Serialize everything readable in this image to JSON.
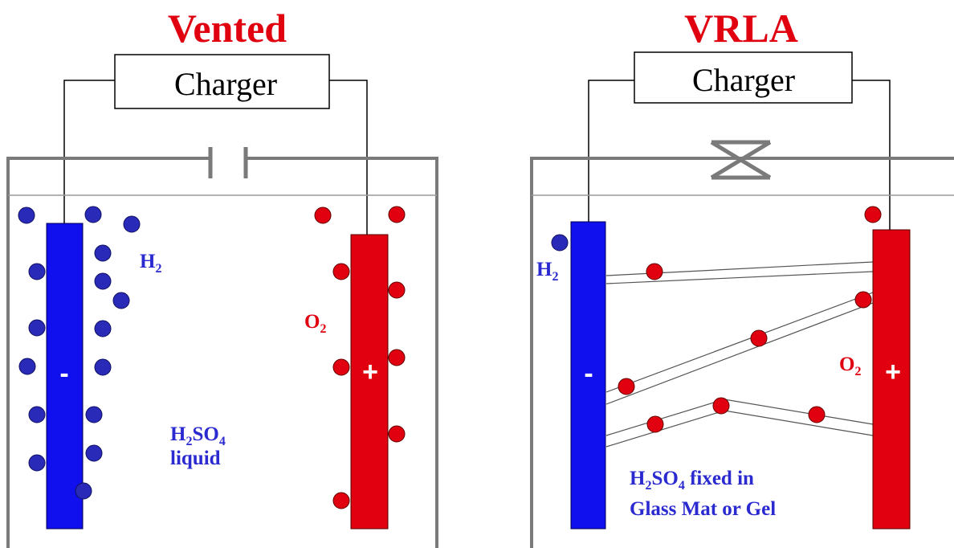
{
  "colors": {
    "title": "#e00010",
    "hydrogen": "#2a2ab8",
    "oxygen": "#e00010",
    "negative_plate": "#1010ee",
    "positive_plate": "#e00010",
    "container": "#7a7a7a",
    "label_blue": "#2a2ad0",
    "label_red": "#e00010"
  },
  "vented": {
    "title": "Vented",
    "charger_label": "Charger",
    "negative_sign": "-",
    "positive_sign": "+",
    "h2": {
      "base": "H",
      "sub": "2"
    },
    "o2": {
      "base": "O",
      "sub": "2"
    },
    "electrolyte": {
      "base1": "H",
      "sub1": "2",
      "base2": "SO",
      "sub2": "4",
      "line2": "liquid"
    },
    "vent_icon": "open-vent-icon"
  },
  "vrla": {
    "title": "VRLA",
    "charger_label": "Charger",
    "negative_sign": "-",
    "positive_sign": "+",
    "h2": {
      "base": "H",
      "sub": "2"
    },
    "o2": {
      "base": "O",
      "sub": "2"
    },
    "electrolyte": {
      "base1": "H",
      "sub1": "2",
      "base2": "SO",
      "sub2": "4",
      "rest": " fixed in",
      "line2": "Glass Mat or Gel"
    },
    "valve_icon": "pressure-valve-icon"
  }
}
